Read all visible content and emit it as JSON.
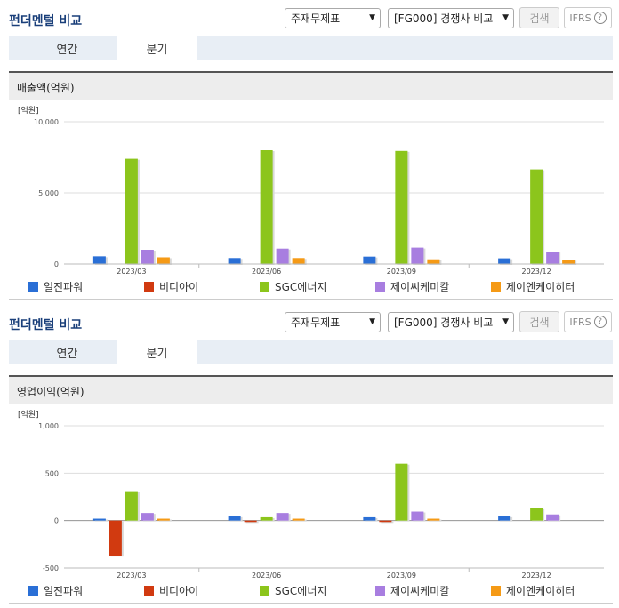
{
  "charts": [
    {
      "title": "펀더멘털 비교",
      "select1": "주재무제표",
      "select2": "[FG000] 경쟁사 비교",
      "search_label": "검색",
      "ifrs_label": "IFRS",
      "help_label": "?",
      "tabs": [
        "연간",
        "분기"
      ],
      "active_tab": 1,
      "subtitle": "매출액(억원)",
      "unit": "[억원]",
      "chart_data": {
        "type": "bar",
        "categories": [
          "2023/03",
          "2023/06",
          "2023/09",
          "2023/12"
        ],
        "ylim": [
          0,
          10000
        ],
        "yticks": [
          0,
          5000,
          10000
        ],
        "ytick_labels": [
          "0",
          "5,000",
          "10,000"
        ],
        "series": [
          {
            "name": "일진파워",
            "color": "#2a6fd6",
            "values": [
              540,
              420,
              520,
              400
            ]
          },
          {
            "name": "비디아이",
            "color": "#d13a10",
            "values": [
              null,
              null,
              null,
              null
            ]
          },
          {
            "name": "SGC에너지",
            "color": "#8cc51c",
            "values": [
              7400,
              8000,
              7950,
              6650
            ]
          },
          {
            "name": "제이씨케미칼",
            "color": "#a87ee0",
            "values": [
              1000,
              1080,
              1150,
              870
            ]
          },
          {
            "name": "제이엔케이히터",
            "color": "#f59a16",
            "values": [
              470,
              420,
              330,
              300
            ]
          }
        ]
      }
    },
    {
      "title": "펀더멘털 비교",
      "select1": "주재무제표",
      "select2": "[FG000] 경쟁사 비교",
      "search_label": "검색",
      "ifrs_label": "IFRS",
      "help_label": "?",
      "tabs": [
        "연간",
        "분기"
      ],
      "active_tab": 1,
      "subtitle": "영업이익(억원)",
      "unit": "[억원]",
      "chart_data": {
        "type": "bar",
        "categories": [
          "2023/03",
          "2023/06",
          "2023/09",
          "2023/12"
        ],
        "ylim": [
          -500,
          1000
        ],
        "yticks": [
          -500,
          0,
          500,
          1000
        ],
        "ytick_labels": [
          "-500",
          "0",
          "500",
          "1,000"
        ],
        "series": [
          {
            "name": "일진파워",
            "color": "#2a6fd6",
            "values": [
              20,
              45,
              35,
              45
            ]
          },
          {
            "name": "비디아이",
            "color": "#d13a10",
            "values": [
              -370,
              -15,
              -15,
              null
            ]
          },
          {
            "name": "SGC에너지",
            "color": "#8cc51c",
            "values": [
              310,
              35,
              600,
              130
            ]
          },
          {
            "name": "제이씨케미칼",
            "color": "#a87ee0",
            "values": [
              80,
              80,
              95,
              65
            ]
          },
          {
            "name": "제이엔케이히터",
            "color": "#f59a16",
            "values": [
              20,
              20,
              20,
              null
            ]
          }
        ]
      }
    }
  ]
}
